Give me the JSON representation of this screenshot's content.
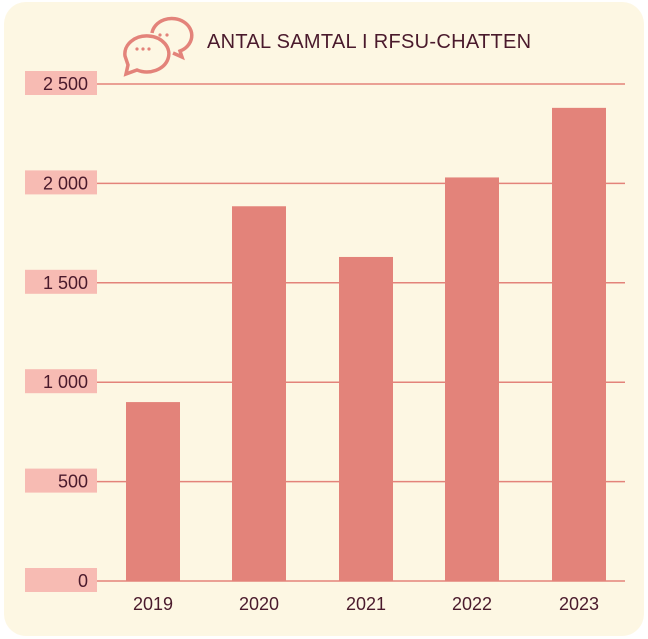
{
  "chart_data": {
    "type": "bar",
    "title": "ANTAL SAMTAL I RFSU-CHATTEN",
    "categories": [
      "2019",
      "2020",
      "2021",
      "2022",
      "2023"
    ],
    "values": [
      900,
      1885,
      1630,
      2030,
      2380
    ],
    "xlabel": "",
    "ylabel": "",
    "ylim": [
      0,
      2500
    ],
    "yticks": [
      0,
      500,
      1000,
      1500,
      2000,
      2500
    ],
    "ytick_labels": [
      "0",
      "500",
      "1 000",
      "1 500",
      "2 000",
      "2 500"
    ],
    "grid": true,
    "colors": {
      "bar": "#e3837a",
      "grid": "#e3837a",
      "tick_box": "#f7bbb3",
      "text": "#4a1a2c",
      "background": "#fdf7e3"
    }
  },
  "header": {
    "icon": "chat-bubbles-icon"
  }
}
